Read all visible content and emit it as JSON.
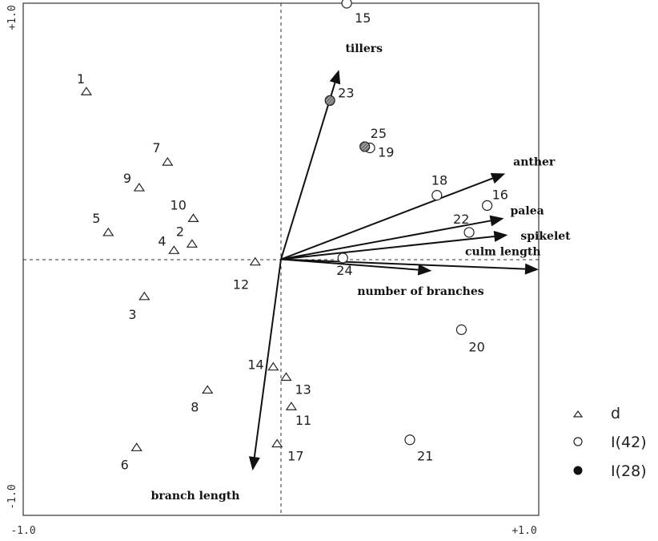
{
  "chart_data": {
    "type": "scatter",
    "title": "",
    "xlabel": "",
    "ylabel": "",
    "xlim": [
      -1.0,
      1.0
    ],
    "ylim": [
      -1.0,
      1.0
    ],
    "grid": false,
    "tick_labels": {
      "x_min": "-1.0",
      "x_max": "+1.0",
      "y_min": "-1.0",
      "y_max": "+1.0"
    },
    "legend_position": "right",
    "legend": [
      {
        "marker": "triangle",
        "label": "d"
      },
      {
        "marker": "open-circle",
        "label": "I(42)"
      },
      {
        "marker": "filled-circle",
        "label": "I(28)"
      }
    ],
    "series": [
      {
        "name": "d",
        "marker": "triangle",
        "points": [
          {
            "label": "1",
            "x": -0.755,
            "y": 0.655
          },
          {
            "label": "2",
            "x": -0.345,
            "y": 0.06
          },
          {
            "label": "3",
            "x": -0.53,
            "y": -0.145
          },
          {
            "label": "4",
            "x": -0.415,
            "y": 0.035
          },
          {
            "label": "5",
            "x": -0.67,
            "y": 0.105
          },
          {
            "label": "6",
            "x": -0.56,
            "y": -0.735
          },
          {
            "label": "7",
            "x": -0.44,
            "y": 0.38
          },
          {
            "label": "8",
            "x": -0.285,
            "y": -0.51
          },
          {
            "label": "9",
            "x": -0.55,
            "y": 0.28
          },
          {
            "label": "10",
            "x": -0.34,
            "y": 0.16
          },
          {
            "label": "11",
            "x": 0.04,
            "y": -0.575
          },
          {
            "label": "12",
            "x": -0.1,
            "y": -0.01
          },
          {
            "label": "13",
            "x": 0.02,
            "y": -0.46
          },
          {
            "label": "14",
            "x": -0.03,
            "y": -0.42
          },
          {
            "label": "17",
            "x": -0.015,
            "y": -0.72
          }
        ]
      },
      {
        "name": "I(42)",
        "marker": "open-circle",
        "points": [
          {
            "label": "15",
            "x": 0.255,
            "y": 1.0
          },
          {
            "label": "16",
            "x": 0.8,
            "y": 0.21
          },
          {
            "label": "18",
            "x": 0.605,
            "y": 0.25
          },
          {
            "label": "19",
            "x": 0.345,
            "y": 0.435
          },
          {
            "label": "20",
            "x": 0.7,
            "y": -0.275
          },
          {
            "label": "21",
            "x": 0.5,
            "y": -0.705
          },
          {
            "label": "22",
            "x": 0.73,
            "y": 0.105
          },
          {
            "label": "24",
            "x": 0.24,
            "y": 0.005
          }
        ]
      },
      {
        "name": "I(28)",
        "marker": "filled-circle",
        "points": [
          {
            "label": "23",
            "x": 0.19,
            "y": 0.62
          },
          {
            "label": "25",
            "x": 0.325,
            "y": 0.44
          }
        ]
      }
    ],
    "vectors": [
      {
        "name": "tillers",
        "x": 0.225,
        "y": 0.74
      },
      {
        "name": "anther",
        "x": 0.87,
        "y": 0.335
      },
      {
        "name": "palea",
        "x": 0.865,
        "y": 0.16
      },
      {
        "name": "spikelet",
        "x": 0.88,
        "y": 0.095
      },
      {
        "name": "culm length",
        "x": 1.0,
        "y": -0.04
      },
      {
        "name": "number of branches",
        "x": 0.585,
        "y": -0.045
      },
      {
        "name": "branch length",
        "x": -0.11,
        "y": -0.825
      }
    ]
  }
}
